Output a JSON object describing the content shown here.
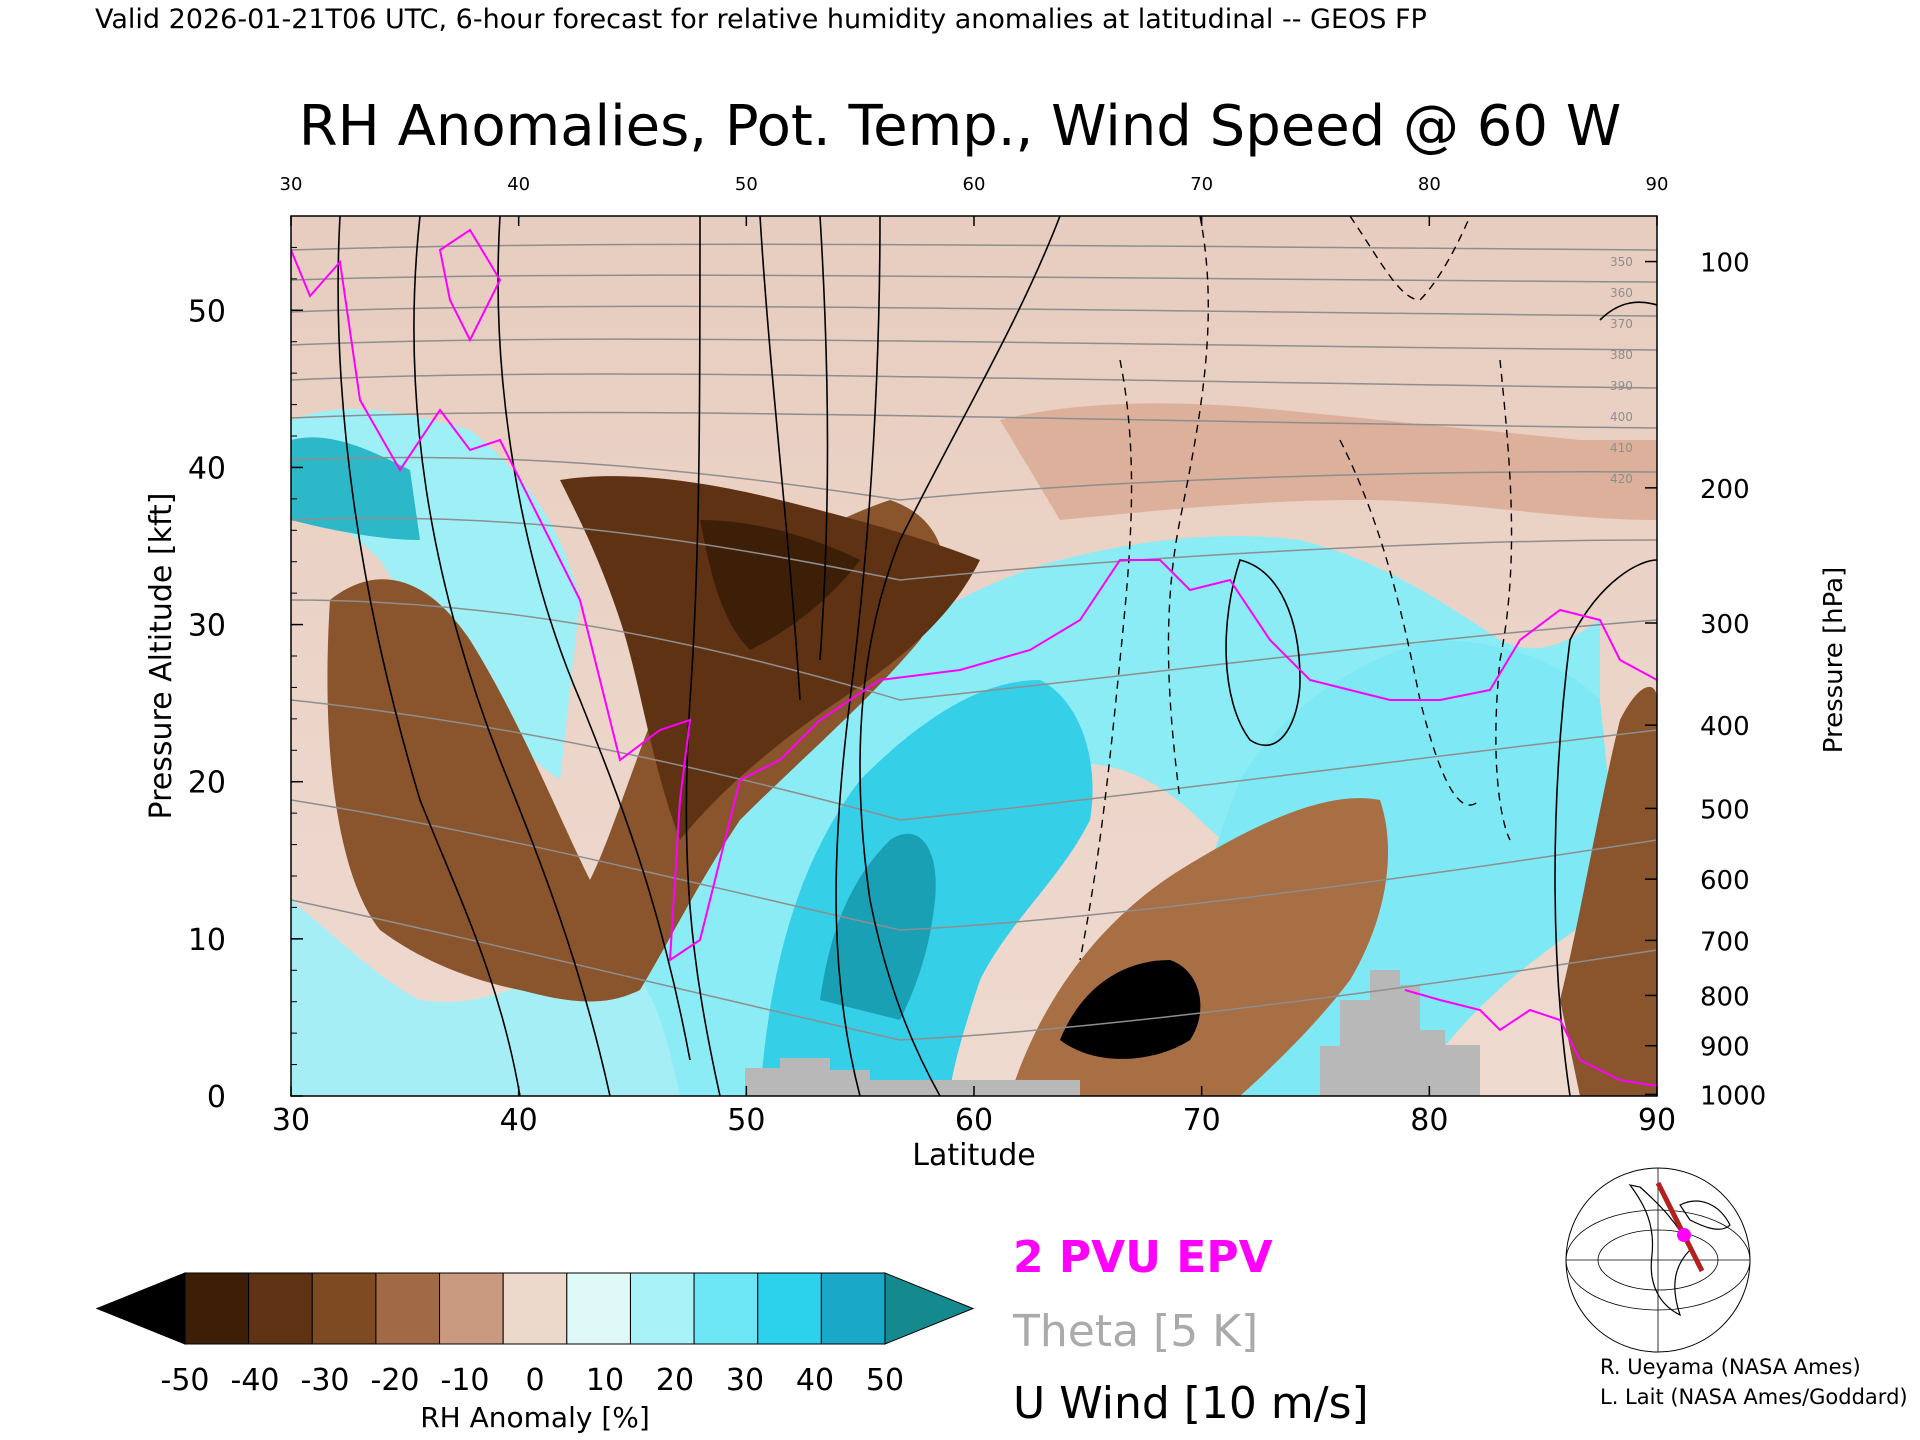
{
  "header": {
    "valid_line": "Valid 2026-01-21T06 UTC, 6-hour forecast for relative humidity anomalies at latitudinal -- GEOS FP"
  },
  "chart_data": {
    "type": "heatmap",
    "title": "RH Anomalies, Pot. Temp., Wind Speed @ 60 W",
    "xlabel": "Latitude",
    "ylabel": "Pressure Altitude [kft]",
    "y2label": "Pressure [hPa]",
    "xlim": [
      30,
      90
    ],
    "ylim": [
      0,
      56
    ],
    "x_ticks": [
      "30",
      "40",
      "50",
      "60",
      "70",
      "80",
      "90"
    ],
    "x_ticks_top": [
      "30",
      "40",
      "50",
      "60",
      "70",
      "80",
      "90"
    ],
    "y_ticks": [
      {
        "v": 0,
        "t": "0"
      },
      {
        "v": 10,
        "t": "10"
      },
      {
        "v": 20,
        "t": "20"
      },
      {
        "v": 30,
        "t": "30"
      },
      {
        "v": 40,
        "t": "40"
      },
      {
        "v": 50,
        "t": "50"
      }
    ],
    "pressure_ticks": [
      {
        "alt": 0.1,
        "t": "1000"
      },
      {
        "alt": 3.2,
        "t": "900"
      },
      {
        "alt": 6.4,
        "t": "800"
      },
      {
        "alt": 9.9,
        "t": "700"
      },
      {
        "alt": 13.8,
        "t": "600"
      },
      {
        "alt": 18.3,
        "t": "500"
      },
      {
        "alt": 23.6,
        "t": "400"
      },
      {
        "alt": 30.1,
        "t": "300"
      },
      {
        "alt": 38.7,
        "t": "200"
      },
      {
        "alt": 53.1,
        "t": "100"
      }
    ],
    "theta_levels": [
      280,
      290,
      300,
      310,
      320,
      330,
      340,
      350,
      360,
      370,
      380,
      390,
      400,
      410,
      420
    ],
    "colorbar": {
      "label": "RH Anomaly [%]",
      "ticks": [
        "-50",
        "-40",
        "-30",
        "-20",
        "-10",
        "0",
        "10",
        "20",
        "30",
        "40",
        "50"
      ],
      "colors": [
        "#000000",
        "#3d1f08",
        "#5e3212",
        "#7d4a22",
        "#a16a44",
        "#c99a80",
        "#edd8cc",
        "#dff8f8",
        "#a8f2f8",
        "#6ce6f4",
        "#2cd2ec",
        "#1aa8c8",
        "#148a8e"
      ]
    },
    "legend": [
      {
        "label": "2 PVU EPV",
        "color": "#ff00ff"
      },
      {
        "label": "Theta [5 K]",
        "color": "#aaaaaa"
      },
      {
        "label": "U Wind [10 m/s]",
        "color": "#000000"
      }
    ],
    "grid": false
  },
  "credits": [
    "R. Ueyama (NASA Ames)",
    "L. Lait (NASA Ames/Goddard)"
  ]
}
